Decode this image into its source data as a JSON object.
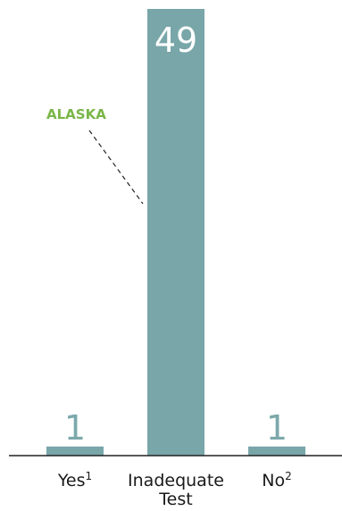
{
  "chart_data": {
    "type": "bar",
    "title": "",
    "xlabel": "",
    "ylabel": "",
    "categories": [
      {
        "label_lines": [
          "Yes"
        ],
        "sup": "1"
      },
      {
        "label_lines": [
          "Inadequate",
          "Test"
        ],
        "sup": ""
      },
      {
        "label_lines": [
          "No"
        ],
        "sup": "2"
      }
    ],
    "values": [
      1,
      49,
      1
    ],
    "ylim": [
      0,
      49
    ],
    "grid": false,
    "legend": "none",
    "colors": {
      "bar": "#78a6a9",
      "value_label": "#7ba8ab",
      "value_label_inside": "#ffffff",
      "annotation": "#7ab648",
      "baseline": "#222222"
    },
    "annotations": [
      {
        "text": "ALASKA",
        "category_index": 1
      }
    ]
  }
}
